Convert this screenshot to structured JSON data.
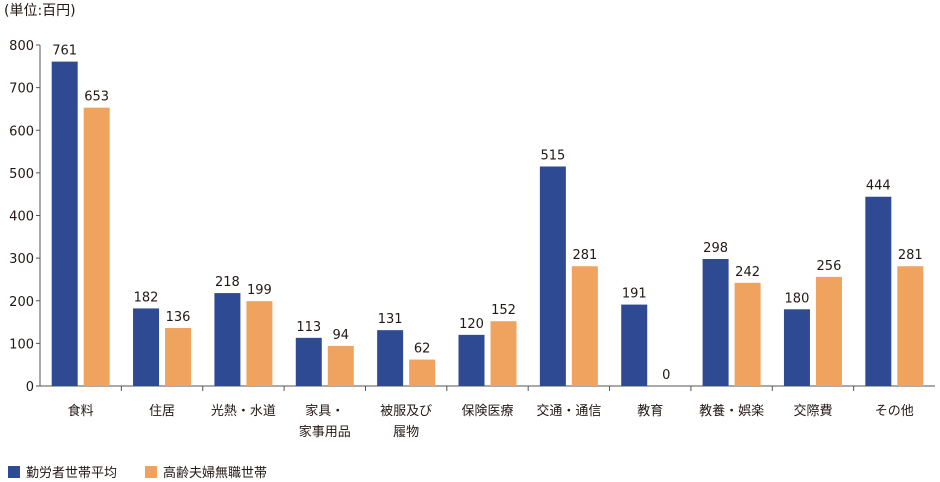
{
  "chart_data": {
    "type": "bar",
    "unit_label": "(単位:百円)",
    "categories": [
      [
        "食料"
      ],
      [
        "住居"
      ],
      [
        "光熱・水道"
      ],
      [
        "家具・",
        "家事用品"
      ],
      [
        "被服及び",
        "履物"
      ],
      [
        "保険医療"
      ],
      [
        "交通・通信"
      ],
      [
        "教育"
      ],
      [
        "教養・娯楽"
      ],
      [
        "交際費"
      ],
      [
        "その他"
      ]
    ],
    "series": [
      {
        "name": "勤労者世帯平均",
        "color": "#2e4a93",
        "values": [
          761,
          182,
          218,
          113,
          131,
          120,
          515,
          191,
          298,
          180,
          444
        ]
      },
      {
        "name": "高齢夫婦無職世帯",
        "color": "#f0a35e",
        "values": [
          653,
          136,
          199,
          94,
          62,
          152,
          281,
          0,
          242,
          256,
          281
        ]
      }
    ],
    "ylim": [
      0,
      800
    ],
    "yticks": [
      0,
      100,
      200,
      300,
      400,
      500,
      600,
      700,
      800
    ],
    "grid": false,
    "legend_position": "bottom-left"
  }
}
